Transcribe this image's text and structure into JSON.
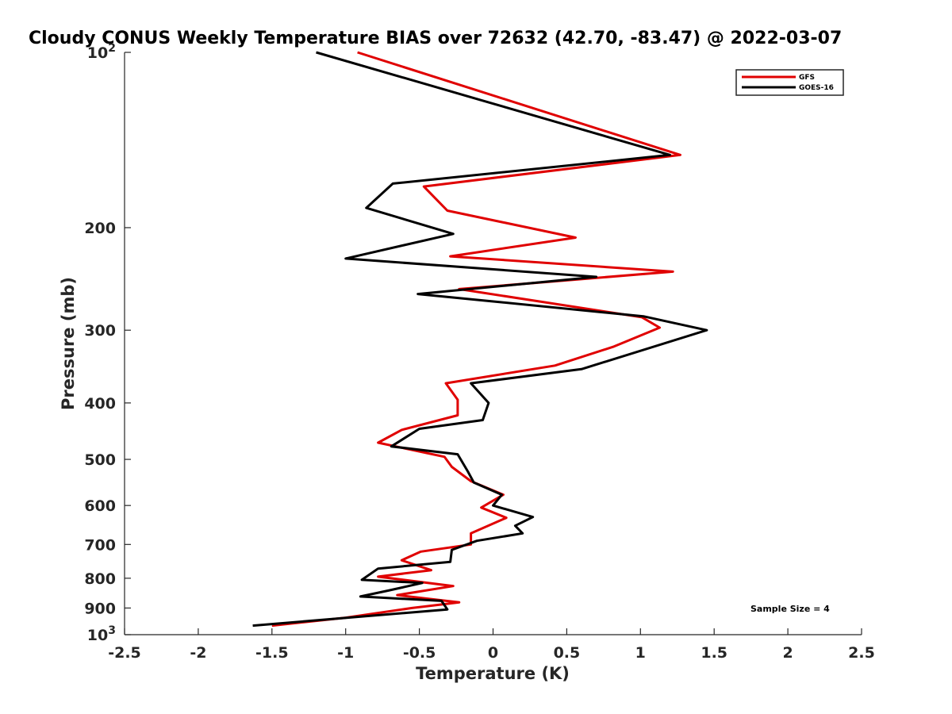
{
  "chart_data": {
    "type": "line",
    "title": "Cloudy CONUS Weekly Temperature BIAS over 72632 (42.70, -83.47) @ 2022-03-07",
    "xlabel": "Temperature (K)",
    "ylabel": "Pressure (mb)",
    "xlim": [
      -2.5,
      2.5
    ],
    "ylim": [
      100,
      1000
    ],
    "y_scale": "log",
    "y_reversed": true,
    "x_ticks": [
      -2.5,
      -2,
      -1.5,
      -1,
      -0.5,
      0,
      0.5,
      1,
      1.5,
      2,
      2.5
    ],
    "x_tick_labels": [
      "-2.5",
      "-2",
      "-1.5",
      "-1",
      "-0.5",
      "0",
      "0.5",
      "1",
      "1.5",
      "2",
      "2.5"
    ],
    "y_ticks": [
      100,
      200,
      300,
      400,
      500,
      600,
      700,
      800,
      900,
      1000
    ],
    "y_tick_labels": [
      {
        "base": "10",
        "exp": "2"
      },
      {
        "base": "200",
        "exp": ""
      },
      {
        "base": "300",
        "exp": ""
      },
      {
        "base": "400",
        "exp": ""
      },
      {
        "base": "500",
        "exp": ""
      },
      {
        "base": "600",
        "exp": ""
      },
      {
        "base": "700",
        "exp": ""
      },
      {
        "base": "800",
        "exp": ""
      },
      {
        "base": "900",
        "exp": ""
      },
      {
        "base": "10",
        "exp": "3"
      }
    ],
    "grid": false,
    "legend_position": "top-right",
    "annotation": "Sample Size = 4",
    "series": [
      {
        "name": "GFS",
        "color": "#e00000",
        "points": [
          [
            -0.92,
            100
          ],
          [
            1.27,
            150
          ],
          [
            -0.47,
            170
          ],
          [
            -0.31,
            187
          ],
          [
            0.56,
            208
          ],
          [
            -0.29,
            224
          ],
          [
            1.22,
            238
          ],
          [
            -0.23,
            255
          ],
          [
            1.01,
            285
          ],
          [
            1.13,
            297
          ],
          [
            0.82,
            320
          ],
          [
            0.42,
            345
          ],
          [
            -0.32,
            370
          ],
          [
            -0.24,
            395
          ],
          [
            -0.24,
            420
          ],
          [
            -0.62,
            445
          ],
          [
            -0.78,
            468
          ],
          [
            -0.33,
            495
          ],
          [
            -0.28,
            515
          ],
          [
            -0.15,
            545
          ],
          [
            0.07,
            575
          ],
          [
            -0.08,
            605
          ],
          [
            0.09,
            630
          ],
          [
            -0.15,
            670
          ],
          [
            -0.15,
            700
          ],
          [
            -0.49,
            720
          ],
          [
            -0.62,
            745
          ],
          [
            -0.42,
            775
          ],
          [
            -0.78,
            795
          ],
          [
            -0.27,
            825
          ],
          [
            -0.65,
            855
          ],
          [
            -0.23,
            880
          ],
          [
            -0.55,
            900
          ],
          [
            -1.0,
            935
          ],
          [
            -1.5,
            965
          ]
        ]
      },
      {
        "name": "GOES-16",
        "color": "#000000",
        "points": [
          [
            -1.2,
            100
          ],
          [
            1.2,
            150
          ],
          [
            -0.68,
            168
          ],
          [
            -0.86,
            185
          ],
          [
            -0.27,
            205
          ],
          [
            -1.0,
            226
          ],
          [
            0.7,
            243
          ],
          [
            -0.51,
            260
          ],
          [
            1.02,
            284
          ],
          [
            1.45,
            300
          ],
          [
            0.6,
            350
          ],
          [
            -0.15,
            370
          ],
          [
            -0.03,
            400
          ],
          [
            -0.07,
            428
          ],
          [
            -0.5,
            443
          ],
          [
            -0.69,
            475
          ],
          [
            -0.24,
            490
          ],
          [
            -0.17,
            525
          ],
          [
            -0.13,
            548
          ],
          [
            0.06,
            575
          ],
          [
            0.0,
            600
          ],
          [
            0.27,
            628
          ],
          [
            0.15,
            650
          ],
          [
            0.2,
            670
          ],
          [
            -0.11,
            690
          ],
          [
            -0.28,
            715
          ],
          [
            -0.29,
            750
          ],
          [
            -0.78,
            770
          ],
          [
            -0.89,
            805
          ],
          [
            -0.48,
            815
          ],
          [
            -0.71,
            840
          ],
          [
            -0.9,
            860
          ],
          [
            -0.35,
            875
          ],
          [
            -0.31,
            905
          ],
          [
            -1.63,
            965
          ]
        ]
      }
    ]
  }
}
